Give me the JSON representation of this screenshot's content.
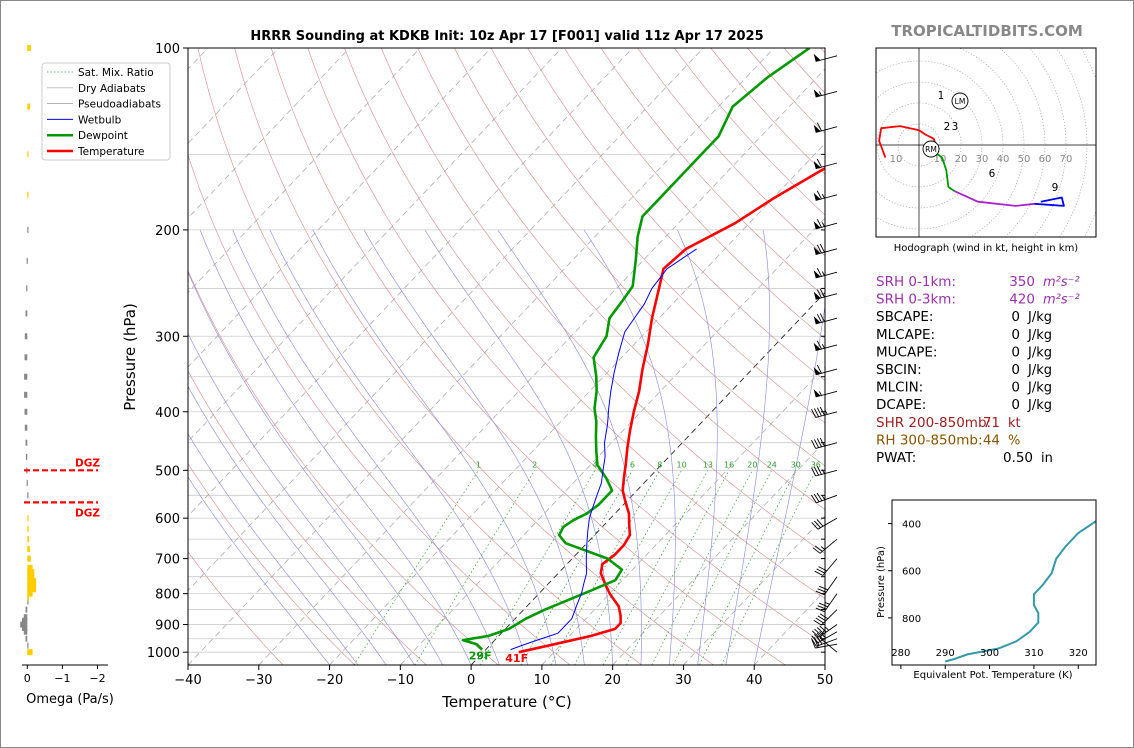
{
  "title": "HRRR Sounding at KDKB Init: 10z Apr 17 [F001] valid 11z Apr 17 2025",
  "brand": "TROPICALTIDBITS.COM",
  "colors": {
    "temperature": "#ff0000",
    "dewpoint": "#009900",
    "wetbulb": "#0000ff",
    "dry_adiabat": "#d98a8a",
    "pseudo_adiabat": "#8888dd",
    "mixing_ratio": "#2e9e2e",
    "isotherm": "#aaaaaa",
    "brand": "#888888",
    "omega_up": "#ffcc00",
    "omega_down": "#888888",
    "theta_e": "#3399aa",
    "srh": "#9933aa",
    "shr": "#992222",
    "rh": "#885500"
  },
  "chart_data": [
    {
      "type": "line",
      "name": "skew-t",
      "xlabel": "Temperature (°C)",
      "ylabel": "Pressure (hPa)",
      "xlim": [
        -40,
        50
      ],
      "ylim": [
        1050,
        100
      ],
      "y_scale": "log",
      "x_ticks": [
        "−40",
        "−30",
        "−20",
        "−10",
        "0",
        "10",
        "20",
        "30",
        "40",
        "50"
      ],
      "y_ticks": [
        "100",
        "200",
        "300",
        "400",
        "500",
        "600",
        "700",
        "800",
        "900",
        "1000"
      ],
      "grid": true,
      "legend_position": "top-left",
      "legend": [
        "Sat. Mix. Ratio",
        "Dry Adiabats",
        "Pseudoadiabats",
        "Wetbulb",
        "Dewpoint",
        "Temperature"
      ],
      "mixing_ratio_labels": [
        "1",
        "2",
        "4",
        "6",
        "8",
        "10",
        "13",
        "16",
        "20",
        "24",
        "30",
        "36"
      ],
      "surface_labels": {
        "dewpoint": "29F",
        "temperature": "41F"
      },
      "series": [
        {
          "name": "Temperature",
          "points": [
            [
              5,
              1000
            ],
            [
              9,
              970
            ],
            [
              13,
              940
            ],
            [
              15.5,
              915
            ],
            [
              15.5,
              895
            ],
            [
              14.5,
              870
            ],
            [
              13,
              840
            ],
            [
              10,
              800
            ],
            [
              8,
              770
            ],
            [
              6,
              740
            ],
            [
              5,
              715
            ],
            [
              5.5,
              690
            ],
            [
              5.5,
              665
            ],
            [
              5,
              640
            ],
            [
              3.5,
              615
            ],
            [
              2,
              590
            ],
            [
              0,
              565
            ],
            [
              -2,
              540
            ],
            [
              -3.5,
              515
            ],
            [
              -5,
              490
            ],
            [
              -7,
              460
            ],
            [
              -9,
              430
            ],
            [
              -11,
              400
            ],
            [
              -13,
              370
            ],
            [
              -15.5,
              340
            ],
            [
              -18,
              310
            ],
            [
              -21,
              280
            ],
            [
              -24,
              250
            ],
            [
              -26,
              232
            ],
            [
              -25.5,
              215
            ],
            [
              -22,
              195
            ],
            [
              -20,
              178
            ],
            [
              -17,
              160
            ],
            [
              -14,
              145
            ],
            [
              -10,
              130
            ],
            [
              -6,
              117
            ],
            [
              -3,
              108
            ],
            [
              -1,
              100
            ]
          ]
        },
        {
          "name": "Dewpoint",
          "points": [
            [
              -0.5,
              990
            ],
            [
              -2,
              970
            ],
            [
              -4.5,
              955
            ],
            [
              -1.5,
              940
            ],
            [
              0.5,
              915
            ],
            [
              1.5,
              880
            ],
            [
              3,
              850
            ],
            [
              5,
              820
            ],
            [
              7,
              790
            ],
            [
              9,
              760
            ],
            [
              8.5,
              730
            ],
            [
              5,
              700
            ],
            [
              -3,
              660
            ],
            [
              -5,
              640
            ],
            [
              -5.5,
              620
            ],
            [
              -5,
              605
            ],
            [
              -4,
              590
            ],
            [
              -3.5,
              570
            ],
            [
              -3.5,
              540
            ],
            [
              -6,
              515
            ],
            [
              -9,
              490
            ],
            [
              -11,
              465
            ],
            [
              -13,
              440
            ],
            [
              -15,
              415
            ],
            [
              -17,
              395
            ],
            [
              -19,
              370
            ],
            [
              -21,
              350
            ],
            [
              -24,
              325
            ],
            [
              -25,
              300
            ],
            [
              -27,
              280
            ],
            [
              -27.5,
              262
            ],
            [
              -28,
              248
            ],
            [
              -31,
              225
            ],
            [
              -34,
              205
            ],
            [
              -36,
              190
            ],
            [
              -36,
              175
            ],
            [
              -36,
              158
            ],
            [
              -36,
              140
            ],
            [
              -38,
              125
            ],
            [
              -37,
              112
            ],
            [
              -35,
              100
            ]
          ]
        },
        {
          "name": "Wetbulb",
          "points": [
            [
              3.5,
              990
            ],
            [
              4.5,
              975
            ],
            [
              6,
              955
            ],
            [
              8,
              930
            ],
            [
              8,
              905
            ],
            [
              8,
              880
            ],
            [
              7,
              840
            ],
            [
              6,
              800
            ],
            [
              5,
              770
            ],
            [
              4,
              740
            ],
            [
              2.5,
              710
            ],
            [
              1.5,
              690
            ],
            [
              0,
              660
            ],
            [
              -1.5,
              630
            ],
            [
              -3,
              600
            ],
            [
              -4,
              575
            ],
            [
              -5,
              550
            ],
            [
              -6,
              525
            ],
            [
              -7.5,
              500
            ],
            [
              -9,
              475
            ],
            [
              -11,
              450
            ],
            [
              -13,
              420
            ],
            [
              -15,
              395
            ],
            [
              -17,
              370
            ],
            [
              -19,
              345
            ],
            [
              -21,
              320
            ],
            [
              -23,
              295
            ],
            [
              -24,
              265
            ],
            [
              -25,
              250
            ],
            [
              -25.5,
              232
            ],
            [
              -24,
              215
            ]
          ]
        }
      ],
      "wind_barbs": [
        {
          "p": 1000,
          "dir": 310,
          "kt": 10
        },
        {
          "p": 970,
          "dir": 260,
          "kt": 20
        },
        {
          "p": 950,
          "dir": 250,
          "kt": 30
        },
        {
          "p": 925,
          "dir": 240,
          "kt": 40
        },
        {
          "p": 900,
          "dir": 235,
          "kt": 45
        },
        {
          "p": 850,
          "dir": 225,
          "kt": 40
        },
        {
          "p": 800,
          "dir": 215,
          "kt": 35
        },
        {
          "p": 750,
          "dir": 215,
          "kt": 30
        },
        {
          "p": 700,
          "dir": 220,
          "kt": 30
        },
        {
          "p": 650,
          "dir": 230,
          "kt": 25
        },
        {
          "p": 600,
          "dir": 240,
          "kt": 30
        },
        {
          "p": 550,
          "dir": 250,
          "kt": 35
        },
        {
          "p": 500,
          "dir": 255,
          "kt": 35
        },
        {
          "p": 450,
          "dir": 255,
          "kt": 40
        },
        {
          "p": 400,
          "dir": 255,
          "kt": 45
        },
        {
          "p": 370,
          "dir": 255,
          "kt": 55
        },
        {
          "p": 340,
          "dir": 255,
          "kt": 60
        },
        {
          "p": 310,
          "dir": 255,
          "kt": 65
        },
        {
          "p": 280,
          "dir": 255,
          "kt": 70
        },
        {
          "p": 255,
          "dir": 255,
          "kt": 70
        },
        {
          "p": 235,
          "dir": 255,
          "kt": 65
        },
        {
          "p": 215,
          "dir": 255,
          "kt": 70
        },
        {
          "p": 195,
          "dir": 255,
          "kt": 65
        },
        {
          "p": 175,
          "dir": 255,
          "kt": 65
        },
        {
          "p": 155,
          "dir": 255,
          "kt": 60
        },
        {
          "p": 135,
          "dir": 255,
          "kt": 60
        },
        {
          "p": 118,
          "dir": 255,
          "kt": 55
        },
        {
          "p": 103,
          "dir": 255,
          "kt": 50
        }
      ]
    },
    {
      "type": "bar",
      "name": "omega",
      "xlabel": "Omega (Pa/s)",
      "xlim": [
        0.15,
        -2.3
      ],
      "x_ticks": [
        "0",
        "−1",
        "−2"
      ],
      "dgz_label": "DGZ",
      "dgz_bounds_hpa": [
        500,
        565
      ],
      "levels": [
        1000,
        975,
        950,
        925,
        912,
        900,
        887,
        875,
        850,
        825,
        812,
        800,
        787,
        775,
        762,
        750,
        737,
        725,
        700,
        675,
        650,
        625,
        600,
        550,
        525,
        500,
        475,
        450,
        425,
        400,
        375,
        350,
        325,
        300,
        275,
        250,
        225,
        200,
        175,
        150,
        125,
        100
      ],
      "values": [
        -0.15,
        0,
        0.05,
        0.1,
        0.15,
        0.2,
        0.15,
        0.1,
        0.05,
        0,
        -0.05,
        -0.15,
        -0.25,
        -0.25,
        -0.25,
        -0.2,
        -0.2,
        -0.15,
        -0.1,
        -0.08,
        -0.05,
        -0.04,
        -0.02,
        0,
        0.02,
        0.03,
        0.04,
        0.05,
        0.07,
        0.08,
        0.09,
        0.09,
        0.08,
        0.07,
        0.05,
        0.03,
        0.02,
        0,
        -0.02,
        -0.03,
        -0.08,
        -0.1
      ]
    },
    {
      "type": "line",
      "name": "hodograph",
      "caption": "Hodograph (wind in kt, height in km)",
      "ring_labels": [
        "10",
        "10",
        "20",
        "30",
        "40",
        "50",
        "60",
        "70"
      ],
      "km_labels": [
        "1",
        "2",
        "3",
        "6",
        "9"
      ],
      "markers": [
        "LM",
        "RM"
      ],
      "segments": [
        {
          "range_km": "0-1",
          "color": "#ff0000",
          "points": [
            [
              -16,
              -6
            ],
            [
              -19,
              2
            ],
            [
              -18,
              8
            ],
            [
              -9,
              9
            ],
            [
              0,
              7
            ],
            [
              3,
              5
            ]
          ]
        },
        {
          "range_km": "1-3",
          "color": "#ff0000",
          "points": [
            [
              3,
              5
            ],
            [
              7,
              3
            ],
            [
              8,
              0
            ],
            [
              7,
              -3
            ]
          ]
        },
        {
          "range_km": "3-6",
          "color": "#009900",
          "points": [
            [
              7,
              -3
            ],
            [
              11,
              -6
            ],
            [
              13,
              -12
            ],
            [
              14,
              -20
            ],
            [
              17,
              -22
            ]
          ]
        },
        {
          "range_km": "6-9",
          "color": "#aa22cc",
          "points": [
            [
              17,
              -22
            ],
            [
              28,
              -27
            ],
            [
              46,
              -29
            ],
            [
              55,
              -28
            ]
          ]
        },
        {
          "range_km": "9-12",
          "color": "#0000ff",
          "points": [
            [
              55,
              -28
            ],
            [
              69,
              -29
            ],
            [
              68,
              -25
            ],
            [
              58,
              -27
            ]
          ]
        }
      ]
    },
    {
      "type": "line",
      "name": "theta-e",
      "xlabel": "Equivalent Pot. Temperature (K)",
      "ylabel": "Pressure (hPa)",
      "xlim": [
        278,
        324
      ],
      "ylim": [
        1000,
        300
      ],
      "x_ticks": [
        "280",
        "290",
        "300",
        "310",
        "320"
      ],
      "y_ticks": [
        "400",
        "600",
        "800"
      ],
      "points": [
        [
          290,
          985
        ],
        [
          292,
          975
        ],
        [
          295,
          955
        ],
        [
          302,
          930
        ],
        [
          306,
          900
        ],
        [
          309,
          860
        ],
        [
          311,
          820
        ],
        [
          311,
          780
        ],
        [
          310,
          745
        ],
        [
          310,
          700
        ],
        [
          312,
          660
        ],
        [
          314,
          610
        ],
        [
          315,
          550
        ],
        [
          317,
          500
        ],
        [
          320,
          440
        ],
        [
          324,
          390
        ],
        [
          327,
          360
        ]
      ]
    }
  ],
  "indices": [
    {
      "label": "SRH 0-1km:",
      "value": "350",
      "unit": "m²s⁻²",
      "color": "#9933aa"
    },
    {
      "label": "SRH 0-3km:",
      "value": "420",
      "unit": "m²s⁻²",
      "color": "#9933aa"
    },
    {
      "label": "SBCAPE:",
      "value": "0",
      "unit": "J/kg",
      "color": "#000000"
    },
    {
      "label": "MLCAPE:",
      "value": "0",
      "unit": "J/kg",
      "color": "#000000"
    },
    {
      "label": "MUCAPE:",
      "value": "0",
      "unit": "J/kg",
      "color": "#000000"
    },
    {
      "label": "SBCIN:",
      "value": "0",
      "unit": "J/kg",
      "color": "#000000"
    },
    {
      "label": "MLCIN:",
      "value": "0",
      "unit": "J/kg",
      "color": "#000000"
    },
    {
      "label": "DCAPE:",
      "value": "0",
      "unit": "J/kg",
      "color": "#000000"
    },
    {
      "label": "SHR 200-850mb:",
      "value": "71",
      "unit": "kt",
      "color": "#992222"
    },
    {
      "label": "RH 300-850mb:",
      "value": "44",
      "unit": "%",
      "color": "#885500"
    },
    {
      "label": "PWAT:",
      "value": "0.50",
      "unit": "in",
      "color": "#000000"
    }
  ]
}
